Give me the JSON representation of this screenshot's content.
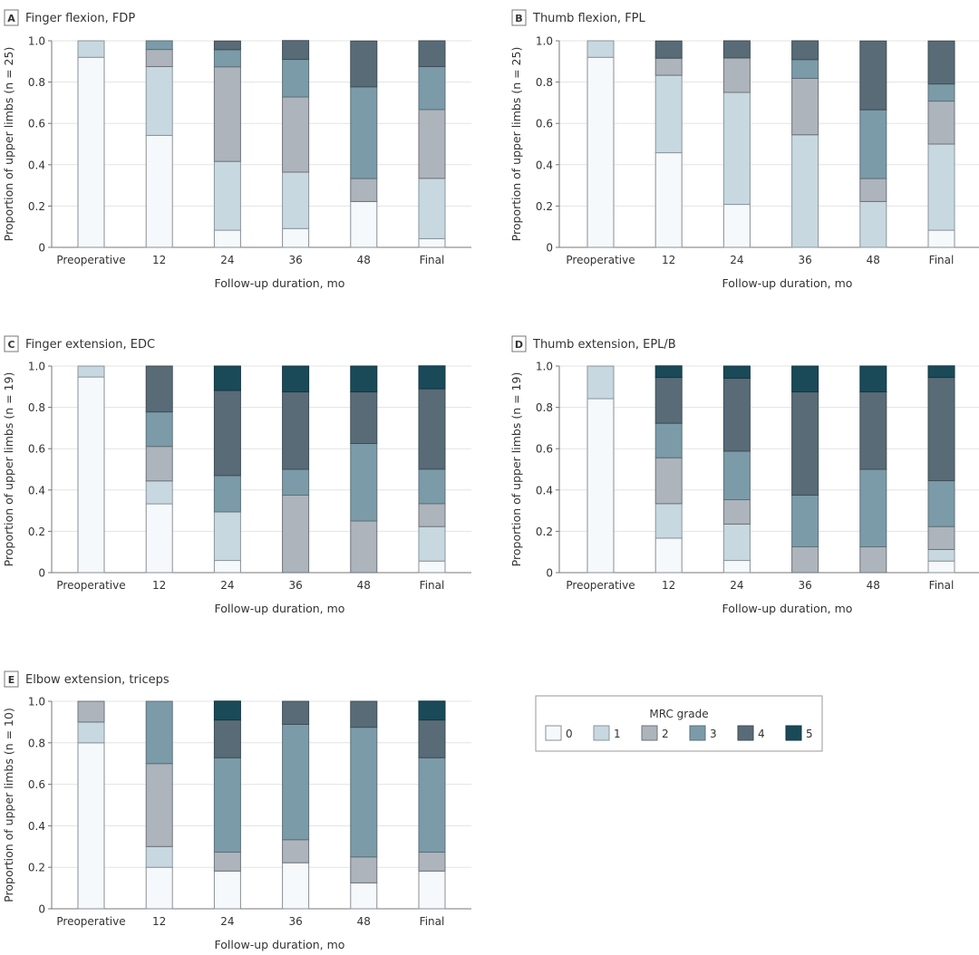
{
  "chart_data": {
    "type": "bar",
    "stacked": true,
    "legend": {
      "title": "MRC grade",
      "entries": [
        "0",
        "1",
        "2",
        "3",
        "4",
        "5"
      ],
      "colors": [
        "#f5f9fc",
        "#c8d8e0",
        "#adb4bc",
        "#7b9ba8",
        "#586b77",
        "#1a4a58"
      ],
      "placement": "bottom-right"
    },
    "panels": [
      {
        "letter": "A",
        "title": "Finger flexion, FDP",
        "ylabel": "Proportion of upper limbs (n = 25)",
        "xlabel": "Follow-up duration, mo",
        "categories": [
          "Preoperative",
          "12",
          "24",
          "36",
          "48",
          "Final"
        ],
        "ylim": [
          0,
          1.0
        ],
        "yticks": [
          "0",
          "0.2",
          "0.4",
          "0.6",
          "0.8",
          "1.0"
        ],
        "series": [
          {
            "name": "0",
            "values": [
              0.92,
              0.542,
              0.083,
              0.091,
              0.222,
              0.042
            ]
          },
          {
            "name": "1",
            "values": [
              0.08,
              0.333,
              0.333,
              0.273,
              0.0,
              0.292
            ]
          },
          {
            "name": "2",
            "values": [
              0.0,
              0.083,
              0.458,
              0.364,
              0.111,
              0.333
            ]
          },
          {
            "name": "3",
            "values": [
              0.0,
              0.042,
              0.083,
              0.182,
              0.444,
              0.208
            ]
          },
          {
            "name": "4",
            "values": [
              0.0,
              0.0,
              0.042,
              0.091,
              0.222,
              0.125
            ]
          },
          {
            "name": "5",
            "values": [
              0.0,
              0.0,
              0.0,
              0.0,
              0.0,
              0.0
            ]
          }
        ]
      },
      {
        "letter": "B",
        "title": "Thumb flexion, FPL",
        "ylabel": "Proportion of upper limbs (n = 25)",
        "xlabel": "Follow-up duration, mo",
        "categories": [
          "Preoperative",
          "12",
          "24",
          "36",
          "48",
          "Final"
        ],
        "ylim": [
          0,
          1.0
        ],
        "yticks": [
          "0",
          "0.2",
          "0.4",
          "0.6",
          "0.8",
          "1.0"
        ],
        "series": [
          {
            "name": "0",
            "values": [
              0.92,
              0.458,
              0.208,
              0.0,
              0.0,
              0.083
            ]
          },
          {
            "name": "1",
            "values": [
              0.08,
              0.375,
              0.542,
              0.545,
              0.222,
              0.417
            ]
          },
          {
            "name": "2",
            "values": [
              0.0,
              0.083,
              0.167,
              0.273,
              0.111,
              0.208
            ]
          },
          {
            "name": "3",
            "values": [
              0.0,
              0.0,
              0.0,
              0.091,
              0.333,
              0.083
            ]
          },
          {
            "name": "4",
            "values": [
              0.0,
              0.083,
              0.083,
              0.091,
              0.333,
              0.208
            ]
          },
          {
            "name": "5",
            "values": [
              0.0,
              0.0,
              0.0,
              0.0,
              0.0,
              0.0
            ]
          }
        ]
      },
      {
        "letter": "C",
        "title": "Finger extension, EDC",
        "ylabel": "Proportion of upper limbs (n = 19)",
        "xlabel": "Follow-up duration, mo",
        "categories": [
          "Preoperative",
          "12",
          "24",
          "36",
          "48",
          "Final"
        ],
        "ylim": [
          0,
          1.0
        ],
        "yticks": [
          "0",
          "0.2",
          "0.4",
          "0.6",
          "0.8",
          "1.0"
        ],
        "series": [
          {
            "name": "0",
            "values": [
              0.947,
              0.333,
              0.059,
              0.0,
              0.0,
              0.056
            ]
          },
          {
            "name": "1",
            "values": [
              0.053,
              0.111,
              0.235,
              0.0,
              0.0,
              0.167
            ]
          },
          {
            "name": "2",
            "values": [
              0.0,
              0.167,
              0.0,
              0.375,
              0.25,
              0.111
            ]
          },
          {
            "name": "3",
            "values": [
              0.0,
              0.167,
              0.176,
              0.125,
              0.375,
              0.167
            ]
          },
          {
            "name": "4",
            "values": [
              0.0,
              0.222,
              0.412,
              0.375,
              0.25,
              0.389
            ]
          },
          {
            "name": "5",
            "values": [
              0.0,
              0.0,
              0.118,
              0.125,
              0.125,
              0.111
            ]
          }
        ]
      },
      {
        "letter": "D",
        "title": "Thumb extension, EPL/B",
        "ylabel": "Proportion of upper limbs (n = 19)",
        "xlabel": "Follow-up duration, mo",
        "categories": [
          "Preoperative",
          "12",
          "24",
          "36",
          "48",
          "Final"
        ],
        "ylim": [
          0,
          1.0
        ],
        "yticks": [
          "0",
          "0.2",
          "0.4",
          "0.6",
          "0.8",
          "1.0"
        ],
        "series": [
          {
            "name": "0",
            "values": [
              0.842,
              0.167,
              0.059,
              0.0,
              0.0,
              0.056
            ]
          },
          {
            "name": "1",
            "values": [
              0.158,
              0.167,
              0.176,
              0.0,
              0.0,
              0.056
            ]
          },
          {
            "name": "2",
            "values": [
              0.0,
              0.222,
              0.118,
              0.125,
              0.125,
              0.111
            ]
          },
          {
            "name": "3",
            "values": [
              0.0,
              0.167,
              0.235,
              0.25,
              0.375,
              0.222
            ]
          },
          {
            "name": "4",
            "values": [
              0.0,
              0.222,
              0.353,
              0.5,
              0.375,
              0.5
            ]
          },
          {
            "name": "5",
            "values": [
              0.0,
              0.056,
              0.059,
              0.125,
              0.125,
              0.056
            ]
          }
        ]
      },
      {
        "letter": "E",
        "title": "Elbow extension, triceps",
        "ylabel": "Proportion of upper limbs (n = 10)",
        "xlabel": "Follow-up duration, mo",
        "categories": [
          "Preoperative",
          "12",
          "24",
          "36",
          "48",
          "Final"
        ],
        "ylim": [
          0,
          1.0
        ],
        "yticks": [
          "0",
          "0.2",
          "0.4",
          "0.6",
          "0.8",
          "1.0"
        ],
        "series": [
          {
            "name": "0",
            "values": [
              0.8,
              0.2,
              0.182,
              0.222,
              0.125,
              0.182
            ]
          },
          {
            "name": "1",
            "values": [
              0.1,
              0.1,
              0.0,
              0.0,
              0.0,
              0.0
            ]
          },
          {
            "name": "2",
            "values": [
              0.1,
              0.4,
              0.091,
              0.111,
              0.125,
              0.091
            ]
          },
          {
            "name": "3",
            "values": [
              0.0,
              0.3,
              0.455,
              0.556,
              0.625,
              0.455
            ]
          },
          {
            "name": "4",
            "values": [
              0.0,
              0.0,
              0.182,
              0.111,
              0.125,
              0.182
            ]
          },
          {
            "name": "5",
            "values": [
              0.0,
              0.0,
              0.091,
              0.0,
              0.0,
              0.091
            ]
          }
        ]
      }
    ]
  }
}
